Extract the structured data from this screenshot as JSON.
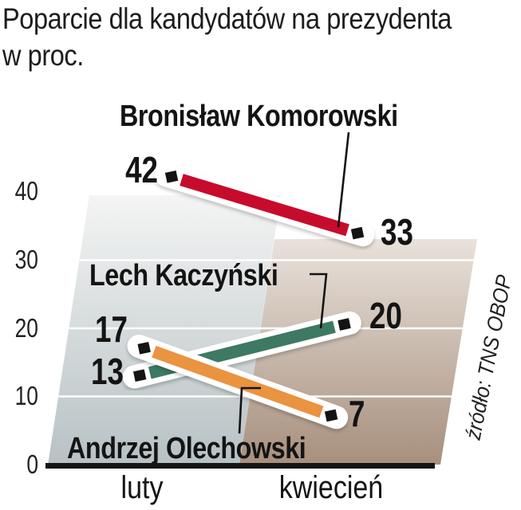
{
  "title": {
    "line1": "Poparcie dla kandydatów na prezydenta",
    "line2": "w proc."
  },
  "source": "źródło: TNS OBOP",
  "chart_data": {
    "type": "line",
    "categories": [
      "luty",
      "kwiecień"
    ],
    "series": [
      {
        "name": "Bronisław Komorowski",
        "values": [
          42,
          33
        ],
        "color": "#c70b2d"
      },
      {
        "name": "Lech Kaczyński",
        "values": [
          13,
          20
        ],
        "color": "#3e7963"
      },
      {
        "name": "Andrzej Olechowski",
        "values": [
          17,
          7
        ],
        "color": "#ea9340"
      }
    ],
    "yticks": [
      0,
      10,
      20,
      30,
      40
    ],
    "ylim": [
      0,
      45
    ],
    "xlabel": "",
    "ylabel": "",
    "grid": true,
    "legend_position": "inline-callouts",
    "style": "pseudo-3d sheared plane, white-outlined thick segments, black square end markers"
  },
  "colors": {
    "ink": "#141414",
    "gridline": "#ffffff",
    "plane_left_top": "#f4f5f4",
    "plane_left_bottom": "#b7c1c4",
    "plane_right_top": "#e9e2db",
    "plane_right_bottom": "#a78f7d"
  }
}
